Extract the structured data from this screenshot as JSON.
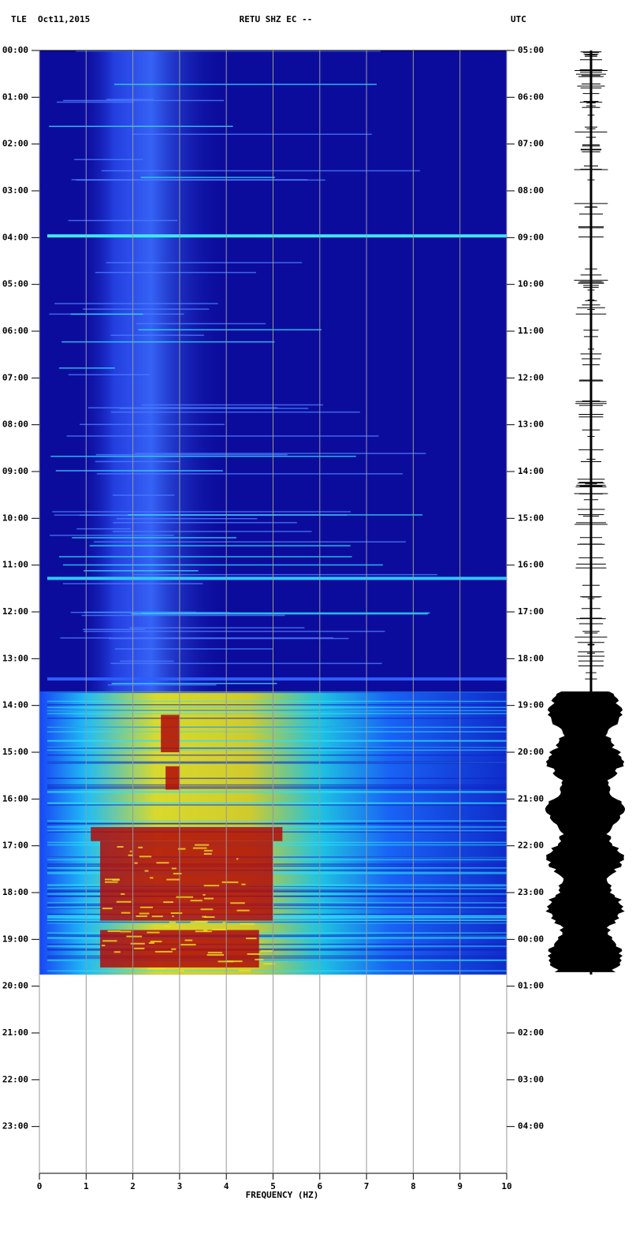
{
  "chart_data": {
    "type": "spectrogram",
    "station": "TLE",
    "date": "Oct11,2015",
    "title": "RETU SHZ EC --",
    "timezone": "UTC",
    "xlabel": "FREQUENCY (HZ)",
    "xlim": [
      0,
      10
    ],
    "xticks": [
      0,
      1,
      2,
      3,
      4,
      5,
      6,
      7,
      8,
      9,
      10
    ],
    "ylim": [
      0,
      24
    ],
    "yticks": [
      {
        "value": 0,
        "label": "00:00"
      },
      {
        "value": 1,
        "label": "01:00"
      },
      {
        "value": 2,
        "label": "02:00"
      },
      {
        "value": 3,
        "label": "03:00"
      },
      {
        "value": 4,
        "label": "04:00"
      },
      {
        "value": 5,
        "label": "05:00"
      },
      {
        "value": 6,
        "label": "06:00"
      },
      {
        "value": 7,
        "label": "07:00"
      },
      {
        "value": 8,
        "label": "08:00"
      },
      {
        "value": 9,
        "label": "09:00"
      },
      {
        "value": 10,
        "label": "10:00"
      },
      {
        "value": 11,
        "label": "11:00"
      },
      {
        "value": 12,
        "label": "12:00"
      },
      {
        "value": 13,
        "label": "13:00"
      },
      {
        "value": 14,
        "label": "14:00"
      },
      {
        "value": 15,
        "label": "15:00"
      },
      {
        "value": 16,
        "label": "16:00"
      },
      {
        "value": 17,
        "label": "17:00"
      },
      {
        "value": 18,
        "label": "18:00"
      },
      {
        "value": 19,
        "label": "19:00"
      },
      {
        "value": 20,
        "label": "20:00"
      },
      {
        "value": 21,
        "label": "21:00"
      },
      {
        "value": 22,
        "label": "22:00"
      },
      {
        "value": 23,
        "label": "23:00"
      }
    ],
    "y2ticks": [
      {
        "value": 0,
        "label": "05:00"
      },
      {
        "value": 1,
        "label": "06:00"
      },
      {
        "value": 2,
        "label": "07:00"
      },
      {
        "value": 3,
        "label": "08:00"
      },
      {
        "value": 4,
        "label": "09:00"
      },
      {
        "value": 5,
        "label": "10:00"
      },
      {
        "value": 6,
        "label": "11:00"
      },
      {
        "value": 7,
        "label": "12:00"
      },
      {
        "value": 8,
        "label": "13:00"
      },
      {
        "value": 9,
        "label": "14:00"
      },
      {
        "value": 10,
        "label": "15:00"
      },
      {
        "value": 11,
        "label": "16:00"
      },
      {
        "value": 12,
        "label": "17:00"
      },
      {
        "value": 13,
        "label": "18:00"
      },
      {
        "value": 14,
        "label": "19:00"
      },
      {
        "value": 15,
        "label": "20:00"
      },
      {
        "value": 16,
        "label": "21:00"
      },
      {
        "value": 17,
        "label": "22:00"
      },
      {
        "value": 18,
        "label": "23:00"
      },
      {
        "value": 19,
        "label": "00:00"
      },
      {
        "value": 20,
        "label": "01:00"
      },
      {
        "value": 21,
        "label": "02:00"
      },
      {
        "value": 22,
        "label": "03:00"
      },
      {
        "value": 23,
        "label": "04:00"
      }
    ]
  }
}
